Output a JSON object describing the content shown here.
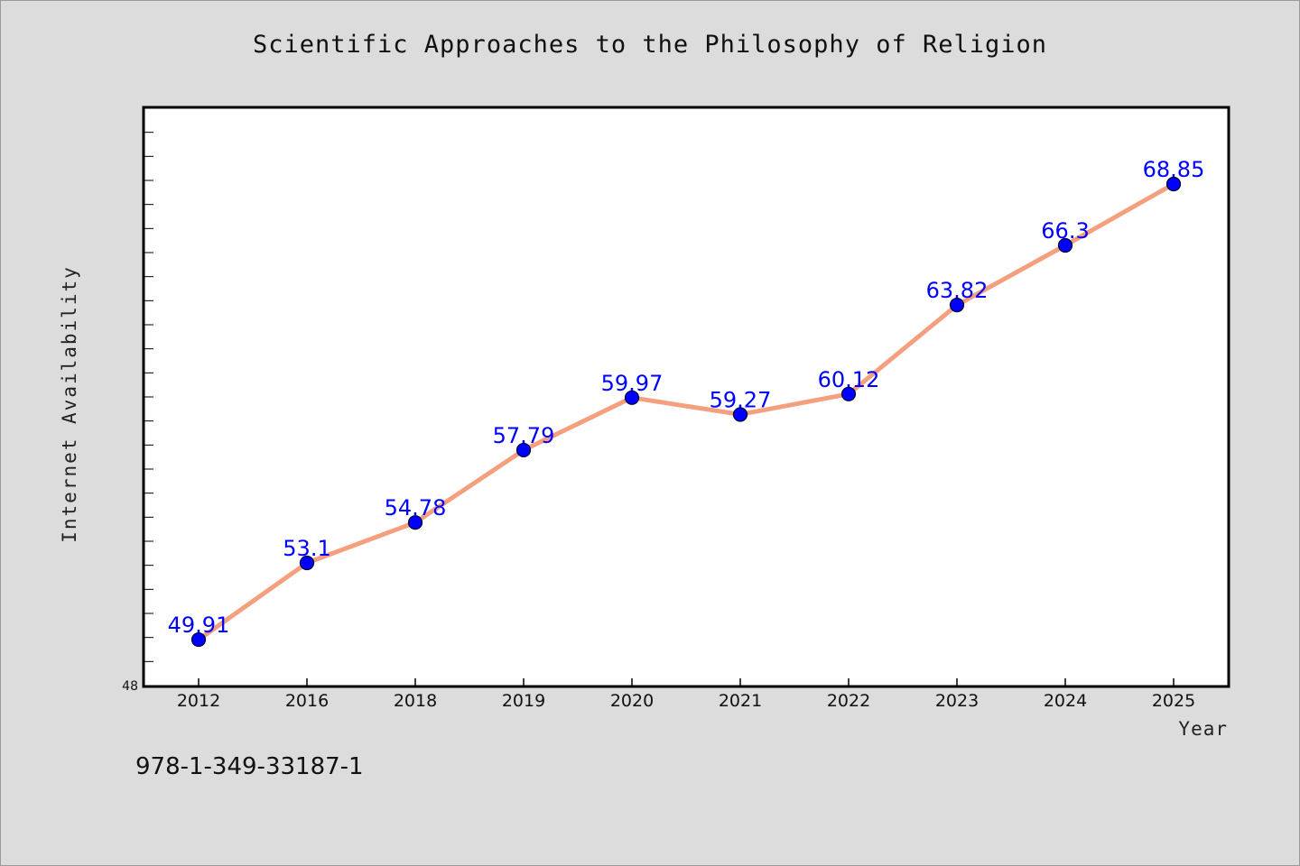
{
  "chart_data": {
    "type": "line",
    "title": "Scientific Approaches to the Philosophy of Religion",
    "xlabel": "Year",
    "ylabel": "Internet Availability",
    "categories": [
      "2012",
      "2016",
      "2018",
      "2019",
      "2020",
      "2021",
      "2022",
      "2023",
      "2024",
      "2025"
    ],
    "series": [
      {
        "values": [
          49.91,
          53.1,
          54.78,
          57.79,
          59.97,
          59.27,
          60.12,
          63.82,
          66.3,
          68.85
        ],
        "labels": [
          "49.91",
          "53.1",
          "54.78",
          "57.79",
          "59.97",
          "59.27",
          "60.12",
          "63.82",
          "66.3",
          "68.85"
        ],
        "line_color": "#f4a07f",
        "marker_color": "#0000ff"
      }
    ],
    "ylim": [
      48,
      72
    ],
    "y_min_label": "48",
    "grid": false,
    "legend": "none",
    "background": "#dcdcdc",
    "plot_background": "#ffffff"
  },
  "footer": {
    "isbn": "978-1-349-33187-1"
  }
}
